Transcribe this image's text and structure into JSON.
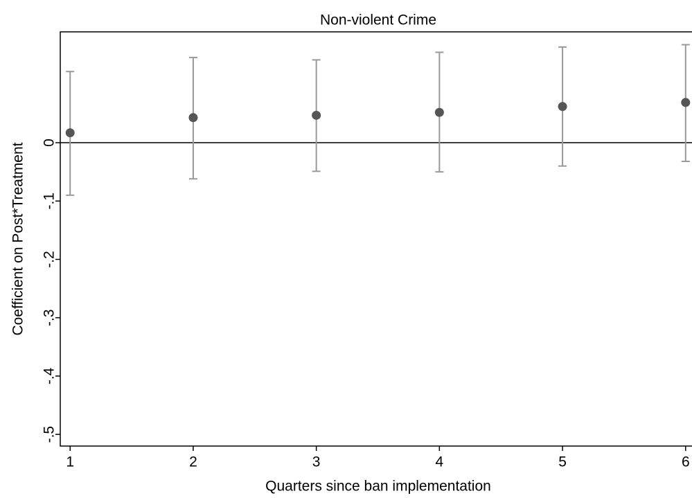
{
  "chart_data": {
    "type": "errorbar",
    "title": "Non-violent Crime",
    "xlabel": "Quarters since ban implementation",
    "ylabel": "Coefficient on Post*Treatment",
    "x": [
      1,
      2,
      3,
      4,
      5,
      6
    ],
    "series": [
      {
        "color": "#555555",
        "bar_color": "#999999",
        "values": [
          0.017,
          0.043,
          0.047,
          0.052,
          0.062,
          0.069
        ],
        "upper": [
          0.122,
          0.146,
          0.142,
          0.155,
          0.164,
          0.168
        ],
        "lower": [
          -0.09,
          -0.062,
          -0.049,
          -0.05,
          -0.04,
          -0.032
        ]
      }
    ],
    "hline": 0,
    "xlim": [
      0.92,
      6.08
    ],
    "xticks": [
      1,
      2,
      3,
      4,
      5,
      6
    ],
    "ylim": [
      -0.52,
      0.19
    ],
    "yticks": [
      0,
      {
        "value": -0.1,
        "label": "-.1"
      },
      {
        "value": -0.2,
        "label": "-.2"
      },
      {
        "value": -0.3,
        "label": "-.3"
      },
      {
        "value": -0.4,
        "label": "-.4"
      },
      {
        "value": -0.5,
        "label": "-.5"
      }
    ]
  }
}
